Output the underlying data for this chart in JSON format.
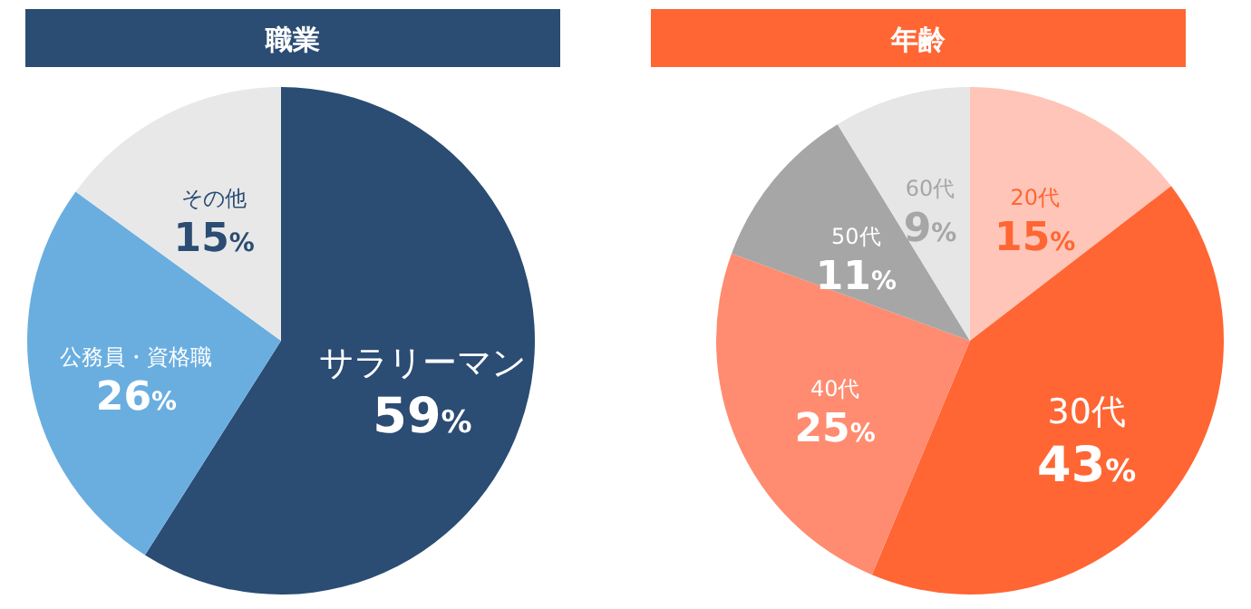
{
  "chart_data": [
    {
      "type": "pie",
      "title": "職業",
      "categories": [
        "サラリーマン",
        "公務員・資格職",
        "その他"
      ],
      "values": [
        59,
        26,
        15
      ],
      "value_labels": [
        "59%",
        "26%",
        "15%"
      ],
      "colors": [
        "#2b4c73",
        "#6aaee0",
        "#e8e8e8"
      ]
    },
    {
      "type": "pie",
      "title": "年齢",
      "categories": [
        "20代",
        "30代",
        "40代",
        "50代",
        "60代"
      ],
      "values": [
        15,
        43,
        25,
        11,
        9
      ],
      "value_labels": [
        "15%",
        "43%",
        "25%",
        "11%",
        "9%"
      ],
      "colors": [
        "#fec5b8",
        "#ff6633",
        "#ff8c70",
        "#a6a6a6",
        "#e6e6e6"
      ]
    }
  ]
}
